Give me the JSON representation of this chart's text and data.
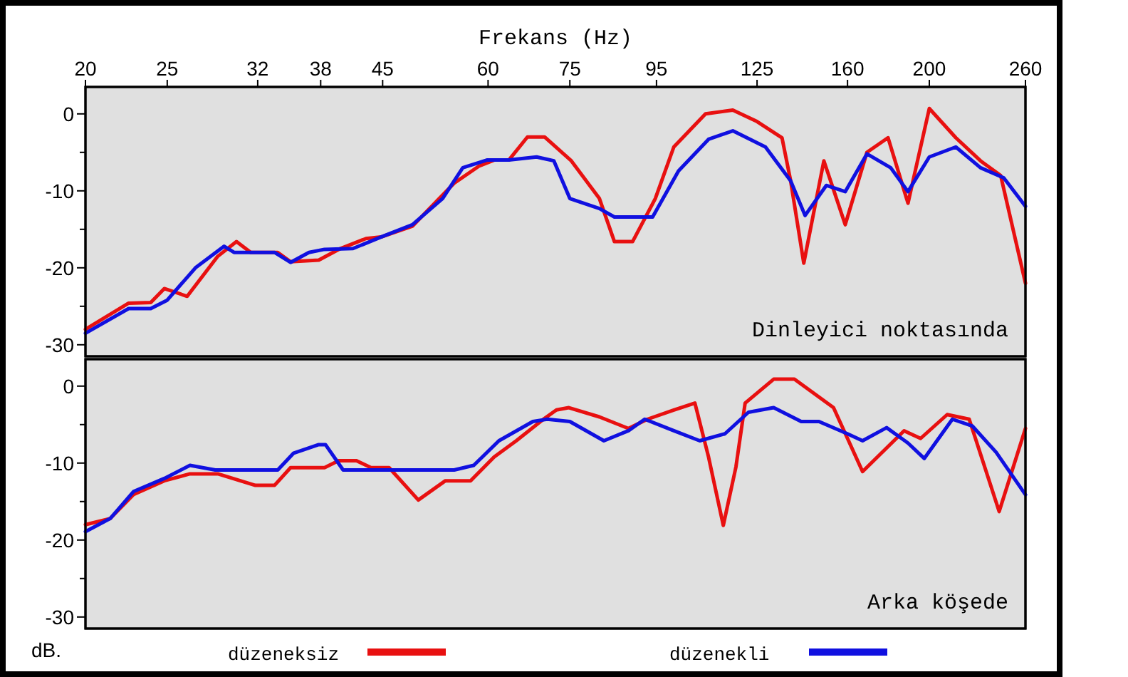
{
  "chart_data": [
    {
      "type": "line",
      "xlabel": "Frekans (Hz)",
      "annotations": [
        "Dinleyici noktasında"
      ],
      "log": "x",
      "xlim": [
        20,
        260
      ],
      "xticks": [
        20,
        25,
        32,
        38,
        45,
        60,
        75,
        95,
        125,
        160,
        200,
        260
      ],
      "ylim": [
        -31.5,
        3.5
      ],
      "yticks": [
        0,
        {
          "value": -5,
          "label": null
        },
        -10,
        {
          "value": -15,
          "label": null
        },
        -20,
        {
          "value": -25,
          "label": null
        },
        -30
      ],
      "legend": false,
      "series": [
        {
          "color": "#e81010",
          "x": [
            20,
            22.5,
            23.9,
            24.8,
            26.4,
            28.7,
            30.2,
            31.4,
            33.8,
            35,
            37.8,
            40.1,
            43,
            44.8,
            48.8,
            54.7,
            58.5,
            61,
            63.5,
            66.8,
            70,
            75.3,
            81.3,
            84.7,
            89,
            94.7,
            99.6,
            108.6,
            117,
            125,
            133.8,
            137,
            142,
            150,
            159,
            168.7,
            178.7,
            188.7,
            200,
            215,
            230,
            243,
            260
          ],
          "values": [
            -28,
            -24.6,
            -24.5,
            -22.7,
            -23.7,
            -18.5,
            -16.6,
            -18,
            -18,
            -19.2,
            -19,
            -17.5,
            -16.2,
            -16,
            -14.6,
            -9,
            -6.8,
            -6,
            -6,
            -3,
            -3,
            -6.1,
            -11,
            -16.6,
            -16.6,
            -11,
            -4.3,
            0,
            0.5,
            -1,
            -3.1,
            -8.7,
            -19.4,
            -6.1,
            -14.4,
            -5,
            -3.1,
            -11.6,
            0.7,
            -3.1,
            -6.1,
            -8,
            -22
          ]
        },
        {
          "color": "#1010e0",
          "x": [
            20,
            22.5,
            23.9,
            25,
            27,
            29.2,
            30,
            33.5,
            35,
            36.8,
            38.4,
            41.5,
            44.8,
            48.8,
            53,
            56,
            59.8,
            63.5,
            68.5,
            71.8,
            75,
            81.3,
            84.7,
            94,
            100.9,
            109.5,
            117,
            127.9,
            137,
            142.5,
            151,
            159,
            168.7,
            180,
            188.7,
            200,
            215,
            230,
            245,
            260
          ],
          "values": [
            -28.5,
            -25.3,
            -25.3,
            -24.2,
            -20,
            -17.2,
            -18,
            -18,
            -19.3,
            -18,
            -17.6,
            -17.5,
            -16,
            -14.4,
            -11,
            -7,
            -6,
            -6,
            -5.6,
            -6.1,
            -11,
            -12.3,
            -13.4,
            -13.4,
            -7.4,
            -3.3,
            -2.2,
            -4.3,
            -8.7,
            -13.2,
            -9.3,
            -10.1,
            -5.2,
            -7,
            -10.1,
            -5.6,
            -4.3,
            -7,
            -8.3,
            -12
          ]
        }
      ]
    },
    {
      "type": "line",
      "ylabel": "dB.",
      "annotations": [
        "Arka köşede"
      ],
      "log": "x",
      "xlim": [
        20,
        260
      ],
      "tick_labels": "y",
      "ylim": [
        -31.5,
        3.5
      ],
      "yticks": [
        0,
        {
          "value": -5,
          "label": null
        },
        -10,
        {
          "value": -15,
          "label": null
        },
        -20,
        {
          "value": -25,
          "label": null
        },
        -30
      ],
      "legend": "bottom",
      "series": [
        {
          "name": "düzeneksiz",
          "color": "#e81010",
          "x": [
            20,
            21.4,
            22.8,
            24.8,
            26.6,
            28.7,
            31.8,
            33.5,
            35,
            38.4,
            39.9,
            41.9,
            43.6,
            45.8,
            49.6,
            53.4,
            57.2,
            61,
            64.8,
            69.8,
            72.3,
            74.8,
            81.3,
            88,
            92.7,
            99.6,
            105.5,
            109.5,
            114,
            118,
            121,
            130.8,
            138.4,
            154,
            166.7,
            186.7,
            195.3,
            210,
            223,
            242,
            260
          ],
          "values": [
            -18,
            -17.2,
            -14.1,
            -12.3,
            -11.4,
            -11.4,
            -12.9,
            -12.9,
            -10.6,
            -10.6,
            -9.7,
            -9.7,
            -10.6,
            -10.6,
            -14.8,
            -12.3,
            -12.3,
            -9.2,
            -7.1,
            -4.3,
            -3.1,
            -2.8,
            -4,
            -5.5,
            -4.3,
            -3.1,
            -2.2,
            -9.2,
            -18.1,
            -10.5,
            -2.2,
            0.9,
            0.9,
            -2.8,
            -11.1,
            -5.8,
            -6.8,
            -3.7,
            -4.3,
            -16.3,
            -5.5
          ]
        },
        {
          "name": "düzenekli",
          "color": "#1010e0",
          "x": [
            20,
            21.4,
            22.8,
            24.8,
            26.6,
            28.5,
            33.8,
            35.3,
            37.8,
            38.5,
            40.4,
            54.7,
            57.7,
            61.8,
            67.8,
            70.5,
            75,
            82.3,
            88,
            92,
            99.6,
            106.9,
            114.5,
            122.1,
            130.8,
            141,
            148,
            160,
            166.7,
            178,
            188.7,
            197.3,
            213,
            225,
            240,
            260
          ],
          "values": [
            -18.9,
            -17.2,
            -13.7,
            -12,
            -10.3,
            -10.9,
            -10.9,
            -8.7,
            -7.6,
            -7.6,
            -10.9,
            -10.9,
            -10.3,
            -7.1,
            -4.6,
            -4.3,
            -4.6,
            -7.1,
            -5.8,
            -4.3,
            -5.8,
            -7.1,
            -6.2,
            -3.4,
            -2.8,
            -4.6,
            -4.6,
            -6.2,
            -7.1,
            -5.4,
            -7.4,
            -9.4,
            -4.3,
            -5.2,
            -8.6,
            -14.1
          ]
        }
      ]
    }
  ]
}
